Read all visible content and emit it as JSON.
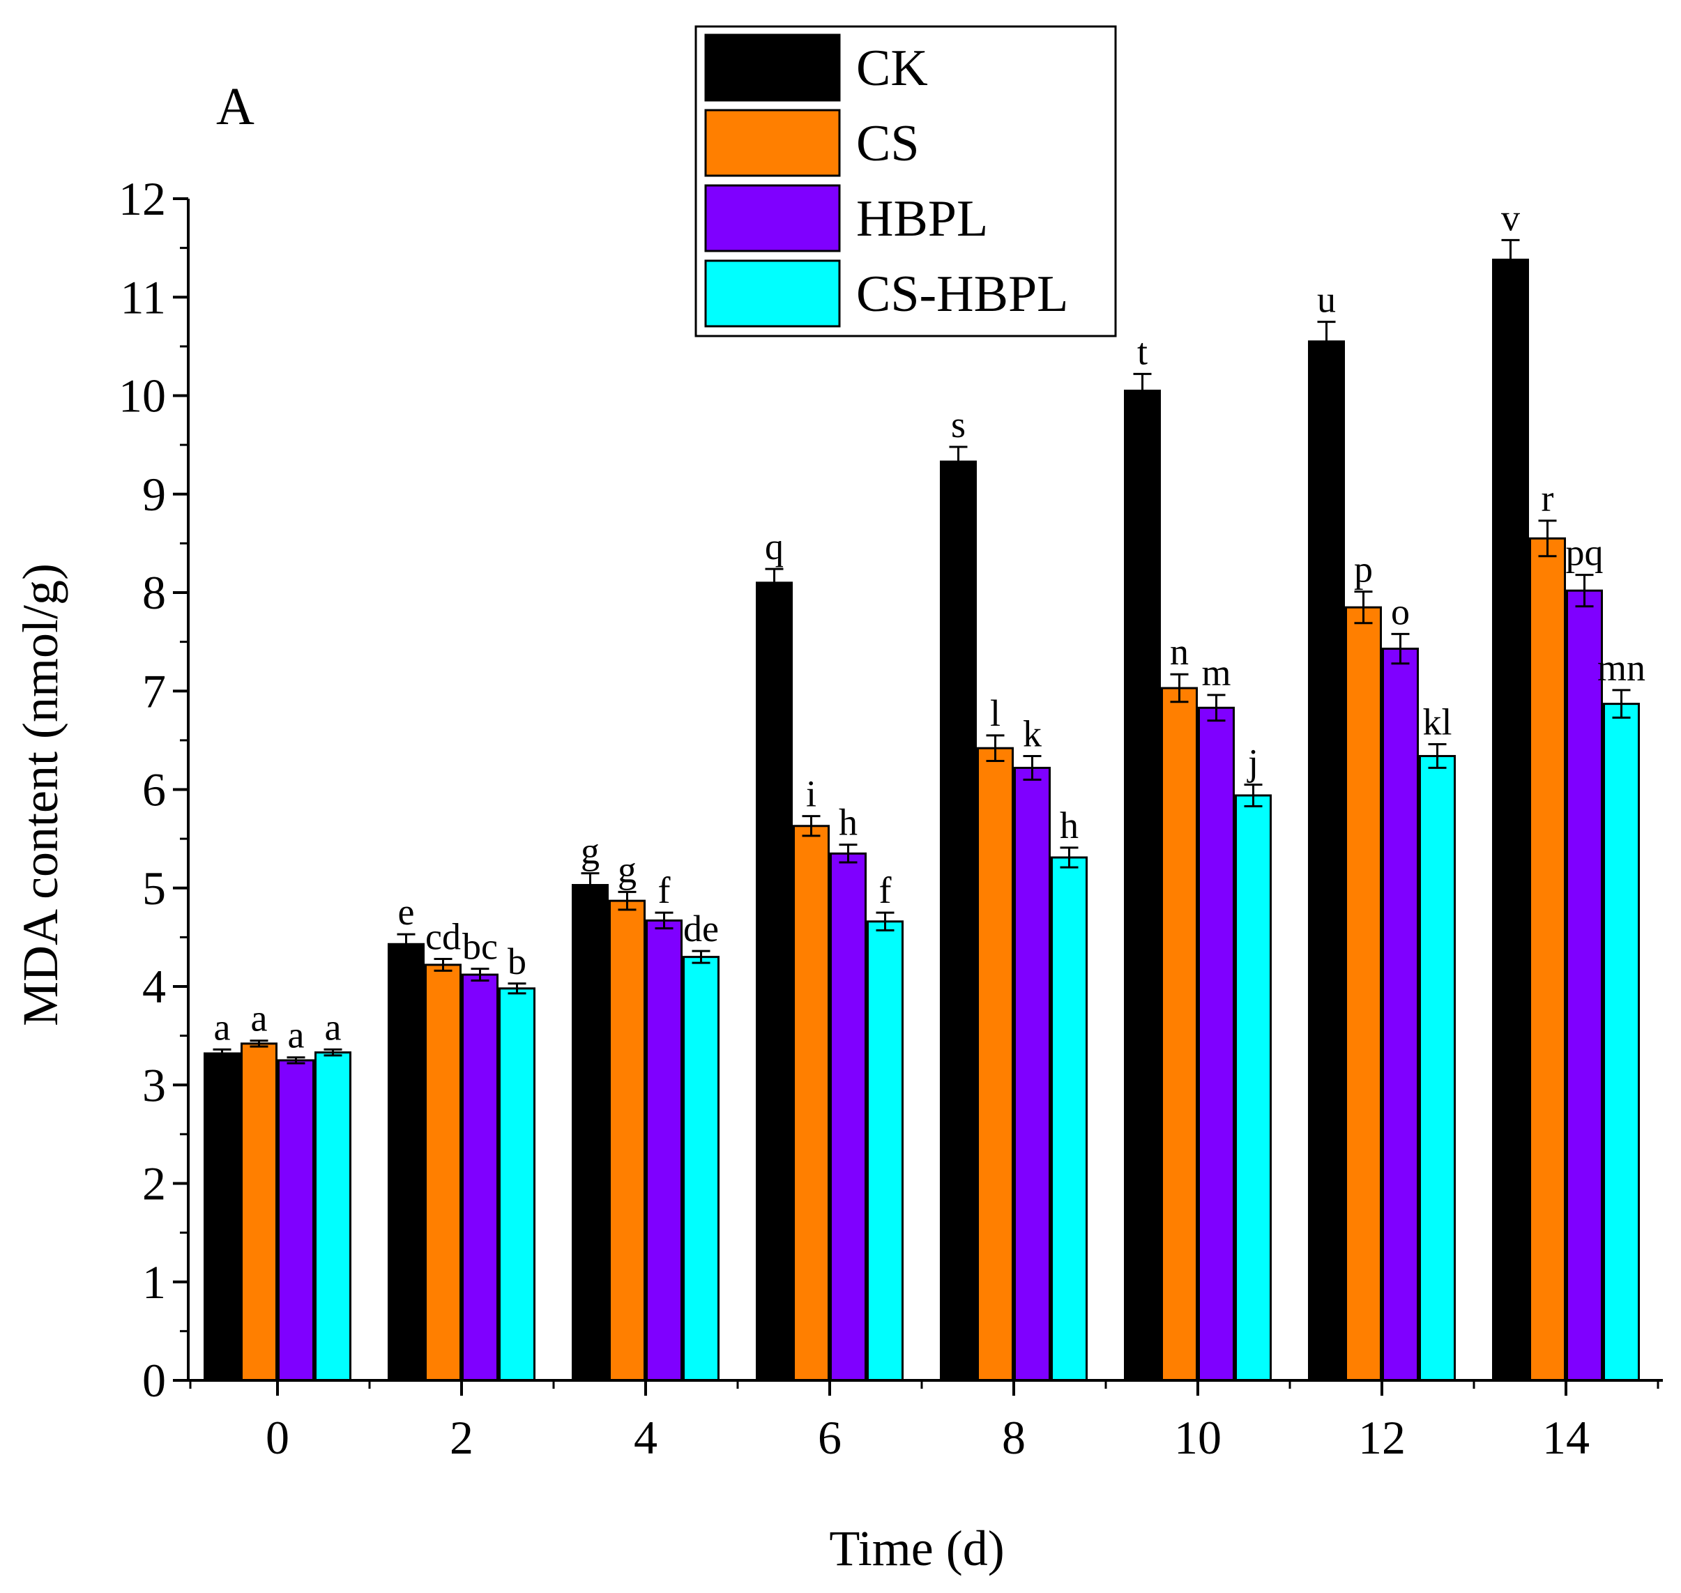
{
  "chart_data": {
    "type": "bar",
    "panel_label": "A",
    "xlabel": "Time (d)",
    "ylabel": "MDA content (nmol/g)",
    "ylim": [
      0,
      12
    ],
    "yticks": [
      "0",
      "1",
      "2",
      "3",
      "4",
      "5",
      "6",
      "7",
      "8",
      "9",
      "10",
      "11",
      "12"
    ],
    "categories": [
      "0",
      "2",
      "4",
      "6",
      "8",
      "10",
      "12",
      "14"
    ],
    "legend_position": "top-center",
    "series": [
      {
        "name": "CK",
        "color": "#000000",
        "values": [
          3.32,
          4.43,
          5.03,
          8.1,
          9.33,
          10.05,
          10.55,
          11.38
        ],
        "errors": [
          0.04,
          0.1,
          0.12,
          0.14,
          0.15,
          0.17,
          0.2,
          0.2
        ],
        "letters": [
          "a",
          "e",
          "g",
          "q",
          "s",
          "t",
          "u",
          "v"
        ]
      },
      {
        "name": "CS",
        "color": "#ff7f00",
        "values": [
          3.42,
          4.22,
          4.87,
          5.63,
          6.42,
          7.03,
          7.85,
          8.55
        ],
        "errors": [
          0.03,
          0.06,
          0.09,
          0.1,
          0.13,
          0.14,
          0.16,
          0.18
        ],
        "letters": [
          "a",
          "cd",
          "g",
          "i",
          "l",
          "n",
          "p",
          "r"
        ]
      },
      {
        "name": "HBPL",
        "color": "#7f00ff",
        "values": [
          3.25,
          4.12,
          4.67,
          5.35,
          6.22,
          6.83,
          7.43,
          8.02
        ],
        "errors": [
          0.03,
          0.06,
          0.08,
          0.09,
          0.12,
          0.13,
          0.15,
          0.16
        ],
        "letters": [
          "a",
          "bc",
          "f",
          "h",
          "k",
          "m",
          "o",
          "pq"
        ]
      },
      {
        "name": "CS-HBPL",
        "color": "#00ffff",
        "values": [
          3.33,
          3.98,
          4.3,
          4.66,
          5.31,
          5.94,
          6.34,
          6.87
        ],
        "errors": [
          0.03,
          0.05,
          0.06,
          0.09,
          0.1,
          0.11,
          0.12,
          0.14
        ],
        "letters": [
          "a",
          "b",
          "de",
          "f",
          "h",
          "j",
          "kl",
          "mn"
        ]
      }
    ]
  }
}
